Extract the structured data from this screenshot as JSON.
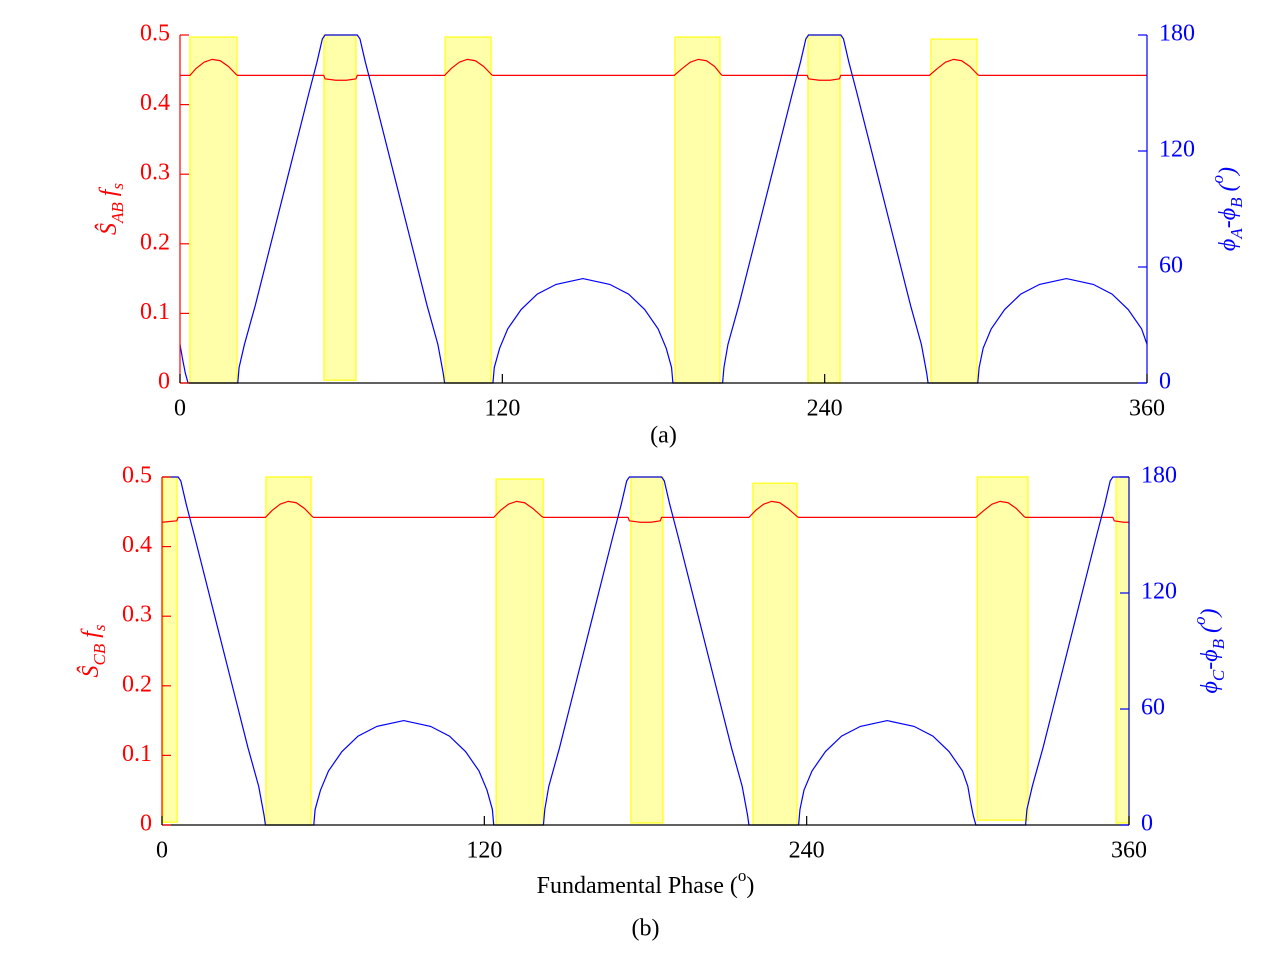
{
  "chart_data": [
    {
      "type": "line",
      "caption": "(a)",
      "ylabel": [
        {
          "text": "Ŝ"
        },
        {
          "text": "AB",
          "sub": true
        },
        {
          "text": " f"
        },
        {
          "text": "s",
          "sub": true
        }
      ],
      "y2label": [
        {
          "text": "ϕ"
        },
        {
          "text": "A",
          "sub": true
        },
        {
          "text": "-ϕ"
        },
        {
          "text": "B",
          "sub": true
        },
        {
          "text": " ("
        },
        {
          "text": "o",
          "sup": true
        },
        {
          "text": ")"
        }
      ],
      "xlim": [
        0,
        360
      ],
      "xticks": [
        0,
        120,
        240,
        360
      ],
      "ylim": [
        0,
        0.5
      ],
      "yticks": [
        0,
        0.1,
        0.2,
        0.3,
        0.4,
        0.5
      ],
      "y2lim": [
        0,
        180
      ],
      "y2ticks": [
        0,
        60,
        120,
        180
      ],
      "highlights": {
        "color": "#ffffaa",
        "edge": "#ffff33",
        "regions": [
          {
            "x": [
              3.7,
              21.2
            ],
            "y": [
              0,
              0.497
            ]
          },
          {
            "x": [
              53.6,
              65.5
            ],
            "y": [
              0.004,
              0.5
            ]
          },
          {
            "x": [
              98.7,
              115.8
            ],
            "y": [
              0,
              0.497
            ]
          },
          {
            "x": [
              184.3,
              201
            ],
            "y": [
              0,
              0.497
            ]
          },
          {
            "x": [
              233.8,
              245.7
            ],
            "y": [
              0,
              0.5
            ]
          },
          {
            "x": [
              279.6,
              296.7
            ],
            "y": [
              0,
              0.494
            ]
          }
        ]
      },
      "series": [
        {
          "color": "#ff0000",
          "x": [
            0,
            3.7,
            6,
            9,
            12,
            15,
            18,
            21,
            21.5,
            53.5,
            54,
            58,
            62,
            65.5,
            66,
            98.5,
            101,
            104,
            107,
            110,
            113,
            116,
            116.5,
            184,
            187,
            190,
            193,
            196,
            199,
            201.5,
            202,
            233.5,
            234,
            238,
            242,
            245.5,
            246,
            279,
            282,
            285,
            288,
            291,
            294,
            297,
            297.5,
            360
          ],
          "values": [
            0.442,
            0.442,
            0.452,
            0.461,
            0.465,
            0.463,
            0.455,
            0.443,
            0.442,
            0.442,
            0.437,
            0.435,
            0.435,
            0.437,
            0.442,
            0.442,
            0.452,
            0.461,
            0.465,
            0.463,
            0.455,
            0.443,
            0.442,
            0.442,
            0.452,
            0.461,
            0.465,
            0.463,
            0.455,
            0.443,
            0.442,
            0.442,
            0.437,
            0.435,
            0.435,
            0.437,
            0.442,
            0.442,
            0.452,
            0.461,
            0.465,
            0.463,
            0.455,
            0.443,
            0.442,
            0.442
          ]
        },
        {
          "color": "#0000ff",
          "axis": "y2",
          "x": [
            0,
            1,
            2,
            3,
            21.5,
            22,
            24,
            28,
            32,
            36,
            40,
            44,
            48,
            51,
            53,
            54,
            66,
            67,
            69,
            72,
            76,
            80,
            84,
            88,
            92,
            96,
            98,
            98.5,
            116.5,
            117,
            119,
            122,
            127,
            133,
            140,
            150,
            160,
            167,
            173,
            178,
            181,
            183,
            183.5,
            202,
            202.5,
            204,
            208,
            212,
            216,
            220,
            224,
            228,
            231,
            233,
            234,
            246,
            247,
            249,
            252,
            256,
            260,
            264,
            268,
            272,
            276,
            278,
            278.5,
            297,
            297.5,
            299,
            302,
            307,
            313,
            320,
            330,
            340,
            347,
            353,
            358,
            360
          ],
          "values": [
            20,
            12,
            5,
            0,
            0,
            8,
            20,
            40,
            62,
            84,
            106,
            128,
            150,
            166,
            178,
            180,
            180,
            178,
            166,
            150,
            128,
            106,
            84,
            62,
            40,
            20,
            5,
            0,
            0,
            8,
            18,
            28,
            38,
            46,
            51,
            54,
            51,
            46,
            38,
            28,
            18,
            8,
            0,
            0,
            8,
            20,
            40,
            62,
            84,
            106,
            128,
            150,
            166,
            178,
            180,
            180,
            178,
            166,
            150,
            128,
            106,
            84,
            62,
            40,
            20,
            5,
            0,
            0,
            8,
            18,
            28,
            38,
            46,
            51,
            54,
            51,
            46,
            38,
            28,
            20
          ]
        }
      ]
    },
    {
      "type": "line",
      "caption": "(b)",
      "xlabel": [
        {
          "text": "Fundamental Phase ("
        },
        {
          "text": "o",
          "sup": true
        },
        {
          "text": ")"
        }
      ],
      "ylabel": [
        {
          "text": "Ŝ"
        },
        {
          "text": "CB",
          "sub": true
        },
        {
          "text": " f"
        },
        {
          "text": "s",
          "sub": true
        }
      ],
      "y2label": [
        {
          "text": "ϕ"
        },
        {
          "text": "C",
          "sub": true
        },
        {
          "text": "-ϕ"
        },
        {
          "text": "B",
          "sub": true
        },
        {
          "text": " ("
        },
        {
          "text": "o",
          "sup": true
        },
        {
          "text": ")"
        }
      ],
      "xlim": [
        0,
        360
      ],
      "xticks": [
        0,
        120,
        240,
        360
      ],
      "ylim": [
        0,
        0.5
      ],
      "yticks": [
        0,
        0.1,
        0.2,
        0.3,
        0.4,
        0.5
      ],
      "y2lim": [
        0,
        180
      ],
      "y2ticks": [
        0,
        60,
        120,
        180
      ],
      "highlights": {
        "color": "#ffffaa",
        "edge": "#ffff33",
        "regions": [
          {
            "x": [
              0.4,
              5.6
            ],
            "y": [
              0.004,
              0.5
            ]
          },
          {
            "x": [
              38.7,
              55.5
            ],
            "y": [
              0,
              0.5
            ]
          },
          {
            "x": [
              124.4,
              141.9
            ],
            "y": [
              0,
              0.497
            ]
          },
          {
            "x": [
              174.6,
              186.5
            ],
            "y": [
              0.003,
              0.5
            ]
          },
          {
            "x": [
              220,
              236.4
            ],
            "y": [
              0,
              0.491
            ]
          },
          {
            "x": [
              303.5,
              322.4
            ],
            "y": [
              0.007,
              0.5
            ]
          },
          {
            "x": [
              355.2,
              360
            ],
            "y": [
              0.003,
              0.5
            ]
          }
        ]
      },
      "series": [
        {
          "color": "#ff0000",
          "x": [
            0,
            5.5,
            6,
            38.5,
            41,
            44,
            47,
            50,
            53,
            56,
            56.5,
            123.5,
            126,
            129,
            132,
            135,
            138,
            141.5,
            142,
            173.5,
            174,
            178,
            182,
            185.5,
            186,
            218.5,
            221,
            224,
            227,
            230,
            233,
            236.5,
            237,
            303,
            306,
            309,
            312,
            315,
            318,
            321,
            321.5,
            354,
            354.5,
            358,
            360
          ],
          "values": [
            0.435,
            0.437,
            0.442,
            0.442,
            0.452,
            0.461,
            0.465,
            0.463,
            0.455,
            0.443,
            0.442,
            0.442,
            0.452,
            0.461,
            0.465,
            0.463,
            0.455,
            0.443,
            0.442,
            0.442,
            0.437,
            0.435,
            0.435,
            0.437,
            0.442,
            0.442,
            0.452,
            0.461,
            0.465,
            0.463,
            0.455,
            0.443,
            0.442,
            0.442,
            0.452,
            0.461,
            0.465,
            0.463,
            0.455,
            0.443,
            0.442,
            0.442,
            0.437,
            0.435,
            0.435
          ]
        },
        {
          "color": "#0000ff",
          "axis": "y2",
          "x": [
            0,
            6,
            7,
            9,
            12,
            16,
            20,
            24,
            28,
            32,
            36,
            38,
            38.5,
            56.5,
            57,
            59,
            62,
            67,
            73,
            80,
            90,
            100,
            107,
            113,
            118,
            121,
            123,
            123.5,
            142,
            142.5,
            144,
            148,
            152,
            156,
            160,
            164,
            168,
            171,
            173,
            174,
            186,
            187,
            189,
            192,
            196,
            200,
            204,
            208,
            212,
            216,
            218,
            218.5,
            237,
            237.5,
            239,
            242,
            247,
            253,
            260,
            270,
            280,
            287,
            293,
            298,
            300,
            301,
            302,
            303,
            321.5,
            322,
            324,
            328,
            332,
            336,
            340,
            344,
            348,
            351,
            353,
            354,
            360
          ],
          "values": [
            180,
            180,
            178,
            166,
            150,
            128,
            106,
            84,
            62,
            40,
            20,
            5,
            0,
            0,
            8,
            18,
            28,
            38,
            46,
            51,
            54,
            51,
            46,
            38,
            28,
            18,
            8,
            0,
            0,
            8,
            20,
            40,
            62,
            84,
            106,
            128,
            150,
            166,
            178,
            180,
            180,
            178,
            166,
            150,
            128,
            106,
            84,
            62,
            40,
            20,
            5,
            0,
            0,
            8,
            18,
            28,
            38,
            46,
            51,
            54,
            51,
            46,
            38,
            28,
            20,
            12,
            5,
            0,
            0,
            8,
            20,
            40,
            62,
            84,
            106,
            128,
            150,
            166,
            178,
            180,
            180
          ]
        }
      ]
    }
  ]
}
